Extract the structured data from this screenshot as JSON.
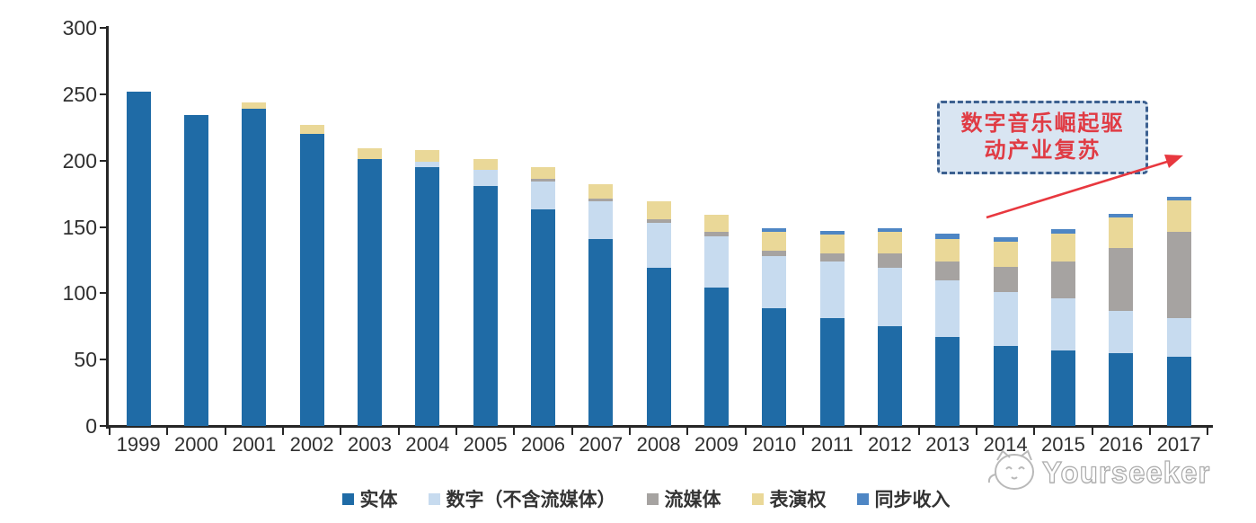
{
  "chart_data": {
    "type": "bar",
    "stacked": true,
    "title": "",
    "xlabel": "",
    "ylabel": "",
    "categories": [
      "1999",
      "2000",
      "2001",
      "2002",
      "2003",
      "2004",
      "2005",
      "2006",
      "2007",
      "2008",
      "2009",
      "2010",
      "2011",
      "2012",
      "2013",
      "2014",
      "2015",
      "2016",
      "2017"
    ],
    "series": [
      {
        "key": "physical",
        "name": "实体",
        "color": "#1F6BA6",
        "values": [
          252,
          234,
          239,
          220,
          201,
          195,
          181,
          163,
          141,
          119,
          104,
          89,
          81,
          75,
          67,
          60,
          57,
          55,
          52
        ]
      },
      {
        "key": "digital-excl-streaming",
        "name": "数字（不含流媒体）",
        "color": "#C7DBEF",
        "values": [
          0,
          0,
          0,
          0,
          0,
          4,
          12,
          21,
          28,
          34,
          39,
          39,
          43,
          44,
          43,
          41,
          39,
          32,
          29
        ]
      },
      {
        "key": "streaming",
        "name": "流媒体",
        "color": "#A6A3A1",
        "values": [
          0,
          0,
          0,
          0,
          0,
          0,
          0,
          2,
          2,
          3,
          3,
          4,
          6,
          11,
          14,
          19,
          28,
          47,
          65
        ]
      },
      {
        "key": "performance-rights",
        "name": "表演权",
        "color": "#EAD898",
        "values": [
          0,
          0,
          5,
          7,
          8,
          9,
          8,
          9,
          11,
          13,
          13,
          14,
          14,
          16,
          17,
          19,
          21,
          23,
          24
        ]
      },
      {
        "key": "sync-revenue",
        "name": "同步收入",
        "color": "#4E86C4",
        "values": [
          0,
          0,
          0,
          0,
          0,
          0,
          0,
          0,
          0,
          0,
          0,
          3,
          3,
          3,
          4,
          3,
          3,
          3,
          3
        ]
      }
    ],
    "ylim": [
      0,
      300
    ],
    "yticks": [
      0,
      50,
      100,
      150,
      200,
      250,
      300
    ],
    "grid": false,
    "legend_position": "bottom"
  },
  "annotation": {
    "line1": "数字音乐崛起驱",
    "line2": "动产业复苏",
    "text_color": "#E03B44",
    "box_fill": "#D9E5F2",
    "box_border": "#3C6090",
    "arrow_color": "#E8383F"
  },
  "watermark": {
    "text": "Yourseeker"
  }
}
